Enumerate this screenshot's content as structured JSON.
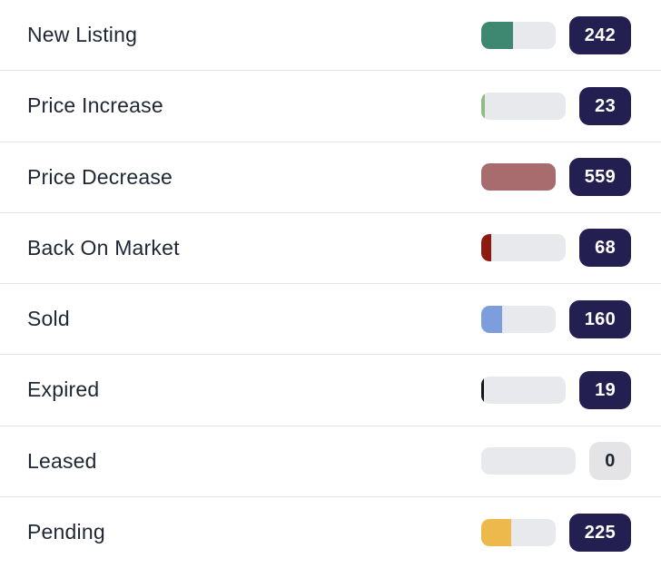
{
  "chart_data": {
    "type": "bar",
    "orientation": "horizontal",
    "categories": [
      "New Listing",
      "Price Increase",
      "Price Decrease",
      "Back On Market",
      "Sold",
      "Expired",
      "Leased",
      "Pending"
    ],
    "values": [
      242,
      23,
      559,
      68,
      160,
      19,
      0,
      225
    ],
    "title": "",
    "xlabel": "",
    "ylabel": "",
    "xlim": [
      0,
      559
    ],
    "grid": false,
    "legend": false
  },
  "list": {
    "max_value": 559,
    "rows": [
      {
        "label": "New Listing",
        "value": "242",
        "bar_color": "#3e8872",
        "badge_variant": "dark"
      },
      {
        "label": "Price Increase",
        "value": "23",
        "bar_color": "#8fbc83",
        "badge_variant": "dark"
      },
      {
        "label": "Price Decrease",
        "value": "559",
        "bar_color": "#a96c6e",
        "badge_variant": "dark"
      },
      {
        "label": "Back On Market",
        "value": "68",
        "bar_color": "#8c1a13",
        "badge_variant": "dark"
      },
      {
        "label": "Sold",
        "value": "160",
        "bar_color": "#7d9edd",
        "badge_variant": "dark"
      },
      {
        "label": "Expired",
        "value": "19",
        "bar_color": "#16161a",
        "badge_variant": "dark"
      },
      {
        "label": "Leased",
        "value": "0",
        "bar_color": "#e8e9ec",
        "badge_variant": "muted"
      },
      {
        "label": "Pending",
        "value": "225",
        "bar_color": "#edb94d",
        "badge_variant": "dark"
      }
    ]
  },
  "colors": {
    "badge_bg": "#241f51",
    "badge_text": "#ffffff",
    "badge_muted_bg": "#e4e4e6",
    "badge_muted_text": "#1f2733",
    "track": "#e8e9ec",
    "divider": "#e3e3e6",
    "label_text": "#1f2733",
    "background": "#ffffff"
  }
}
